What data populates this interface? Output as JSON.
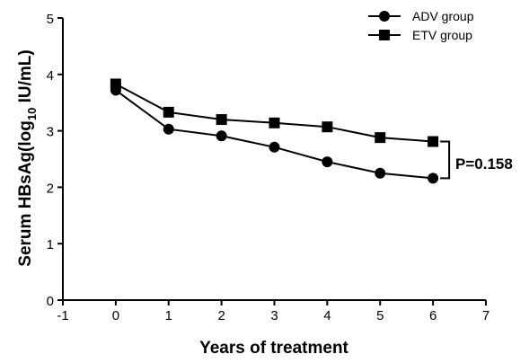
{
  "chart_data": {
    "type": "line",
    "xlabel": "Years of treatment",
    "ylabel_main": "Serum HBsAg(log",
    "ylabel_sub": "10",
    "ylabel_unit": " IU/mL)",
    "xlim": [
      -1,
      7
    ],
    "ylim": [
      0,
      5
    ],
    "xticks": [
      "-1",
      "0",
      "1",
      "2",
      "3",
      "4",
      "5",
      "6",
      "7"
    ],
    "yticks": [
      "0",
      "1",
      "2",
      "3",
      "4",
      "5"
    ],
    "x": [
      0,
      1,
      2,
      3,
      4,
      5,
      6
    ],
    "series": [
      {
        "name": "ADV group",
        "marker": "circle",
        "values": [
          3.72,
          3.03,
          2.91,
          2.71,
          2.45,
          2.25,
          2.16
        ]
      },
      {
        "name": "ETV group",
        "marker": "square",
        "values": [
          3.83,
          3.33,
          3.2,
          3.14,
          3.07,
          2.88,
          2.81
        ]
      }
    ],
    "annotation": "P=0.158",
    "legend_position": "top-right",
    "grid": false,
    "color": "#000000"
  }
}
